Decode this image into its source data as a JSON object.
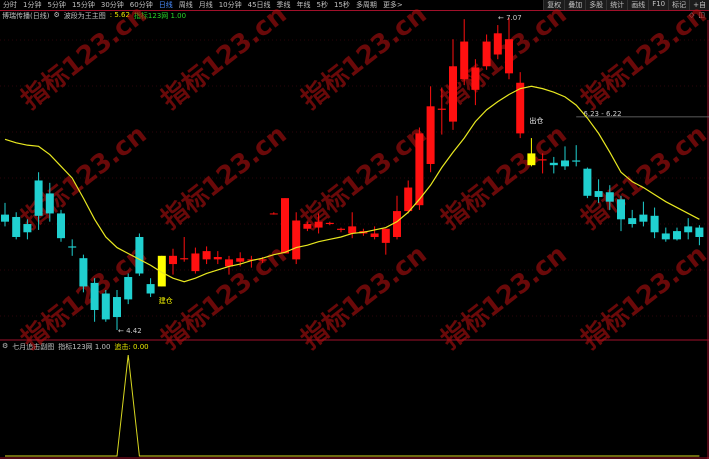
{
  "toolbar": {
    "tabs": [
      "分时",
      "1分钟",
      "5分钟",
      "15分钟",
      "30分钟",
      "60分钟",
      "日线",
      "周线",
      "月线",
      "10分钟",
      "45日线",
      "季线",
      "年线",
      "5秒",
      "15秒",
      "多周期",
      "更多>"
    ],
    "active_tab": "日线",
    "right_buttons": [
      "复权",
      "叠加",
      "多股",
      "统计",
      "画线",
      "F10",
      "标记",
      "+自"
    ]
  },
  "main_panel": {
    "title": "博瑞传播(日线)",
    "indicator_name": "波段为王主图",
    "indicator_value": ": 5.62",
    "indicator_source": "指标123网 1.00",
    "corner_icons": [
      "diamond-icon",
      "window-icon"
    ]
  },
  "sub_panel": {
    "title": "七月追击副图",
    "source": "指标123网 1.00",
    "value_label": "追击: 0.00"
  },
  "annotations": {
    "buy_label": "建仓",
    "sell_label": "出仓",
    "low_label": "4.42",
    "high_label": "7.07",
    "level_label": "6.23 - 6.22"
  },
  "watermark": "指标123.cn",
  "colors": {
    "up": "#ff1010",
    "down": "#20d0d0",
    "signal": "#ffff00",
    "ma": "#e8e820",
    "grid": "#5a0a14",
    "border": "#a0102a"
  },
  "chart_data": {
    "type": "candlestick",
    "ylim": [
      4.42,
      7.07
    ],
    "candles": [
      [
        5.4,
        5.34,
        5.5,
        5.3
      ],
      [
        5.38,
        5.21,
        5.42,
        5.19
      ],
      [
        5.32,
        5.25,
        5.36,
        5.19
      ],
      [
        5.69,
        5.39,
        5.76,
        5.27
      ],
      [
        5.58,
        5.41,
        5.67,
        5.34
      ],
      [
        5.41,
        5.2,
        5.44,
        5.17
      ],
      [
        5.13,
        5.12,
        5.19,
        5.05
      ],
      [
        5.03,
        4.79,
        5.06,
        4.74
      ],
      [
        4.82,
        4.59,
        4.86,
        4.49
      ],
      [
        4.73,
        4.51,
        4.76,
        4.49
      ],
      [
        4.7,
        4.53,
        4.76,
        4.42
      ],
      [
        4.87,
        4.68,
        4.9,
        4.64
      ],
      [
        5.21,
        4.9,
        5.24,
        4.88
      ],
      [
        4.81,
        4.73,
        4.86,
        4.7
      ],
      [
        4.79,
        5.05,
        5.05,
        4.79
      ],
      [
        4.98,
        5.05,
        5.11,
        4.89
      ],
      [
        5.02,
        5.03,
        5.21,
        5.0
      ],
      [
        4.92,
        5.07,
        5.12,
        4.9
      ],
      [
        5.02,
        5.09,
        5.13,
        4.98
      ],
      [
        5.02,
        5.04,
        5.09,
        4.98
      ],
      [
        4.96,
        5.02,
        5.05,
        4.89
      ],
      [
        5.0,
        5.03,
        5.08,
        4.96
      ],
      [
        5.01,
        5.02,
        5.05,
        4.95
      ],
      [
        5.01,
        5.02,
        5.04,
        4.99
      ],
      [
        5.41,
        5.41,
        5.42,
        5.4
      ],
      [
        5.07,
        5.54,
        5.54,
        5.07
      ],
      [
        5.02,
        5.35,
        5.42,
        4.98
      ],
      [
        5.28,
        5.32,
        5.34,
        5.26
      ],
      [
        5.29,
        5.34,
        5.41,
        5.24
      ],
      [
        5.32,
        5.33,
        5.34,
        5.31
      ],
      [
        5.27,
        5.28,
        5.29,
        5.25
      ],
      [
        5.24,
        5.3,
        5.42,
        5.2
      ],
      [
        5.24,
        5.26,
        5.28,
        5.22
      ],
      [
        5.21,
        5.24,
        5.3,
        5.19
      ],
      [
        5.16,
        5.28,
        5.28,
        5.06
      ],
      [
        5.21,
        5.43,
        5.56,
        5.19
      ],
      [
        5.43,
        5.63,
        5.69,
        5.41
      ],
      [
        5.48,
        6.09,
        6.14,
        5.44
      ],
      [
        5.83,
        6.32,
        6.49,
        5.76
      ],
      [
        6.29,
        6.3,
        6.48,
        6.08
      ],
      [
        6.19,
        6.66,
        6.89,
        6.12
      ],
      [
        6.55,
        6.87,
        7.06,
        6.5
      ],
      [
        6.46,
        6.65,
        6.72,
        6.33
      ],
      [
        6.66,
        6.87,
        6.93,
        6.63
      ],
      [
        6.76,
        6.94,
        7.01,
        6.72
      ],
      [
        6.6,
        6.89,
        7.07,
        6.55
      ],
      [
        6.09,
        6.52,
        6.61,
        6.05
      ],
      [
        5.82,
        5.92,
        6.05,
        5.81
      ],
      [
        5.86,
        5.87,
        5.92,
        5.75
      ],
      [
        5.84,
        5.82,
        5.89,
        5.75
      ],
      [
        5.86,
        5.81,
        5.98,
        5.78
      ],
      [
        5.86,
        5.85,
        5.99,
        5.81
      ],
      [
        5.79,
        5.56,
        5.8,
        5.54
      ],
      [
        5.6,
        5.55,
        5.7,
        5.5
      ],
      [
        5.59,
        5.51,
        5.65,
        5.44
      ],
      [
        5.53,
        5.36,
        5.56,
        5.26
      ],
      [
        5.37,
        5.32,
        5.44,
        5.29
      ],
      [
        5.4,
        5.34,
        5.51,
        5.3
      ],
      [
        5.39,
        5.25,
        5.46,
        5.2
      ],
      [
        5.24,
        5.19,
        5.29,
        5.17
      ],
      [
        5.26,
        5.19,
        5.29,
        5.18
      ],
      [
        5.3,
        5.25,
        5.37,
        5.19
      ],
      [
        5.29,
        5.21,
        5.31,
        5.14
      ]
    ],
    "signal_candles": [
      14,
      47
    ],
    "ma": [
      6.04,
      6.01,
      5.99,
      5.98,
      5.91,
      5.81,
      5.71,
      5.54,
      5.36,
      5.21,
      5.12,
      5.07,
      5.02,
      4.97,
      4.91,
      4.86,
      4.83,
      4.86,
      4.9,
      4.93,
      4.96,
      4.98,
      5.01,
      5.03,
      5.06,
      5.08,
      5.12,
      5.14,
      5.17,
      5.19,
      5.21,
      5.24,
      5.25,
      5.27,
      5.29,
      5.34,
      5.42,
      5.53,
      5.65,
      5.8,
      5.93,
      6.05,
      6.19,
      6.29,
      6.36,
      6.42,
      6.47,
      6.49,
      6.47,
      6.44,
      6.4,
      6.33,
      6.22,
      6.09,
      5.93,
      5.76,
      5.68,
      5.63,
      5.57,
      5.51,
      5.46,
      5.41,
      5.36
    ],
    "level_line": 6.23,
    "sub_indicator": {
      "name": "追击",
      "ylim": [
        0,
        1
      ],
      "spike_index": 11,
      "spike_value": 1
    }
  }
}
